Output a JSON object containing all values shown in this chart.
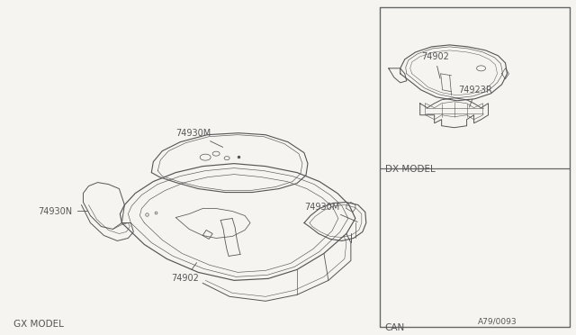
{
  "bg_color": "#f5f4f0",
  "line_color": "#555555",
  "border_color": "#666666",
  "title_gx": "GX MODEL",
  "title_can": "CAN",
  "title_dx": "DX MODEL",
  "part_74902": "74902",
  "part_74930N": "74930N",
  "part_74930M_right": "74930M",
  "part_74930M_bottom": "74930M",
  "part_74923R": "74923R",
  "part_74902_dx": "74902",
  "footer": "A79/0093",
  "font_size_label": 7.0,
  "font_size_title": 7.5,
  "font_size_footer": 6.5
}
